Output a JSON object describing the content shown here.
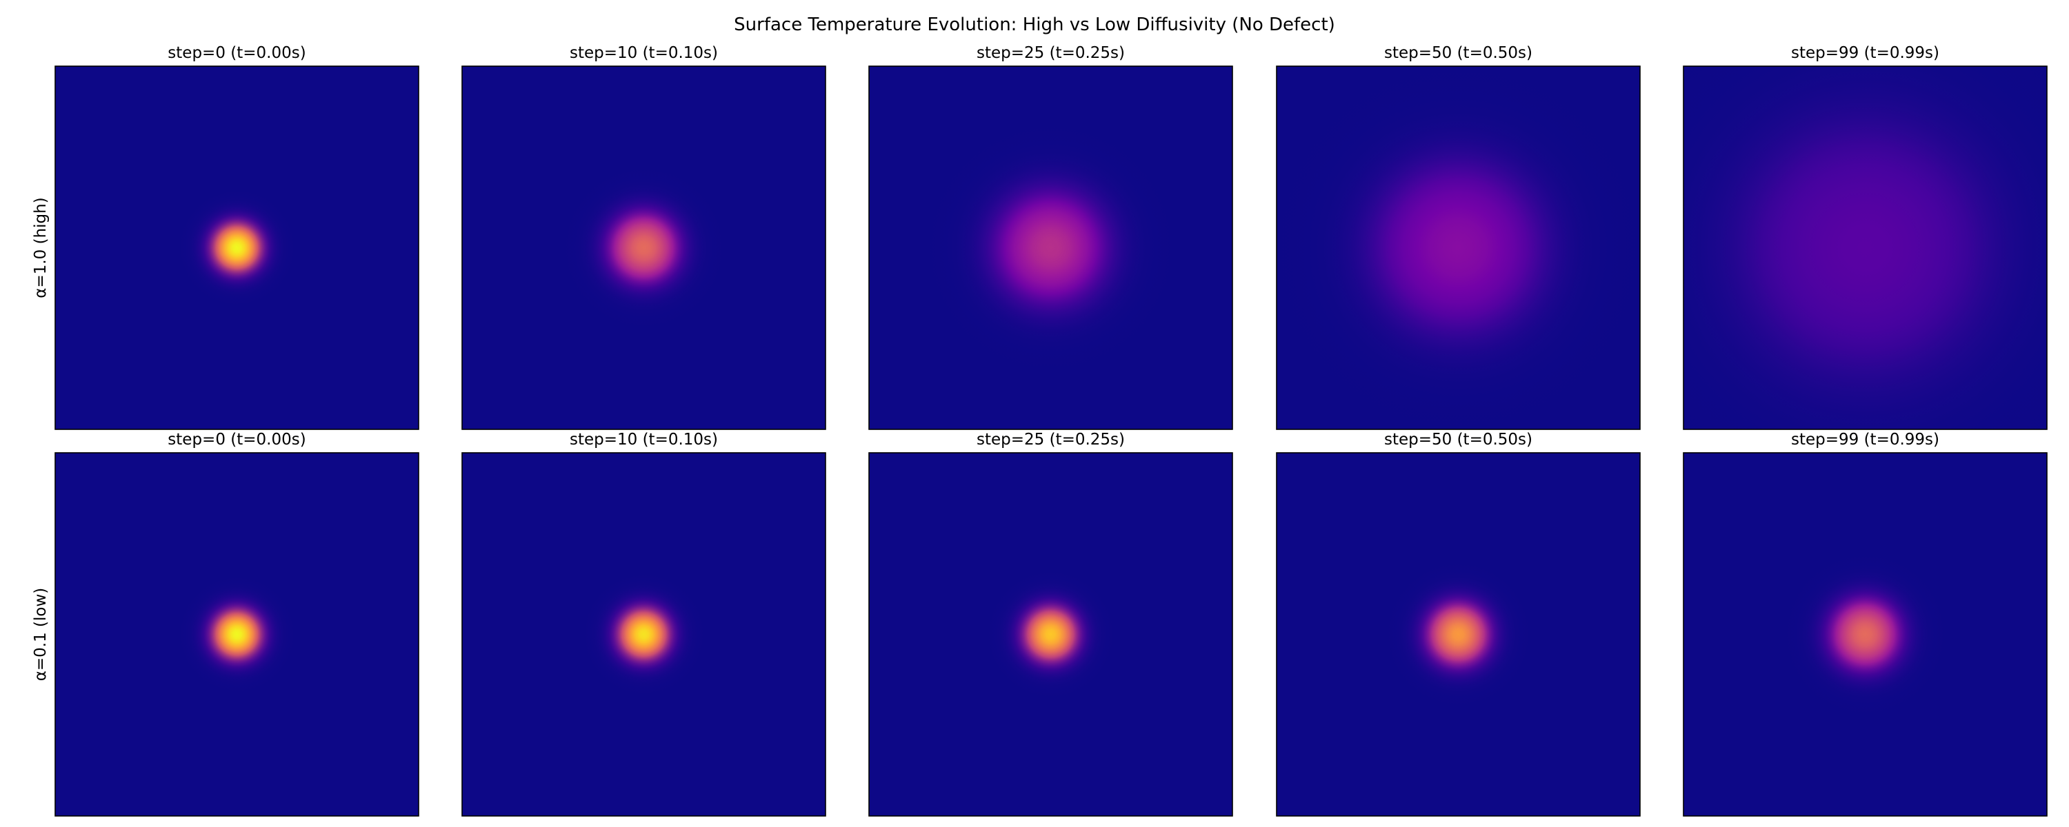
{
  "chart_data": {
    "type": "heatmap",
    "title": "Surface Temperature Evolution: High vs Low Diffusivity (No Defect)",
    "colormap": "plasma",
    "grid": false,
    "axes_ticks": false,
    "columns": [
      {
        "step": 0,
        "t": 0.0,
        "label": "step=0 (t=0.00s)"
      },
      {
        "step": 10,
        "t": 0.1,
        "label": "step=10 (t=0.10s)"
      },
      {
        "step": 25,
        "t": 0.25,
        "label": "step=25 (t=0.25s)"
      },
      {
        "step": 50,
        "t": 0.5,
        "label": "step=50 (t=0.50s)"
      },
      {
        "step": 99,
        "t": 0.99,
        "label": "step=99 (t=0.99s)"
      }
    ],
    "rows": [
      {
        "label": "α=1.0 (high)",
        "alpha": 1.0,
        "hotspot": {
          "peak_fraction": [
            1.0,
            0.62,
            0.42,
            0.28,
            0.16
          ],
          "radius_fraction": [
            0.1,
            0.14,
            0.22,
            0.33,
            0.5
          ]
        }
      },
      {
        "label": "α=0.1 (low)",
        "alpha": 0.1,
        "hotspot": {
          "peak_fraction": [
            1.0,
            0.95,
            0.88,
            0.76,
            0.62
          ],
          "radius_fraction": [
            0.1,
            0.105,
            0.11,
            0.125,
            0.14
          ]
        }
      }
    ],
    "hotspot_center_fraction": [
      0.5,
      0.5
    ]
  },
  "colors": {
    "background_low": "#0d0887",
    "plasma_stops": [
      "#0d0887",
      "#46039f",
      "#7201a8",
      "#9c179e",
      "#bd3786",
      "#d8576b",
      "#ed7953",
      "#fb9f3a",
      "#fdca26",
      "#f0f921"
    ]
  }
}
